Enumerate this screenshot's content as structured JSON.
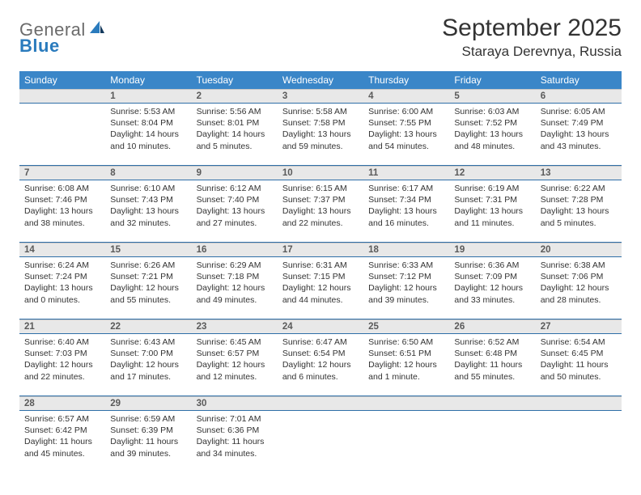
{
  "logo": {
    "text1": "General",
    "text2": "Blue"
  },
  "title": "September 2025",
  "location": "Staraya Derevnya, Russia",
  "colors": {
    "header_bg": "#3a86c8",
    "header_text": "#ffffff",
    "daynum_bg": "#e8e8e8",
    "daynum_text": "#5a5a5a",
    "rule": "#2f6fa8",
    "logo_gray": "#6b6b6b",
    "logo_blue": "#2a7bbd",
    "body_text": "#333333",
    "background": "#ffffff"
  },
  "fonts": {
    "title_size_pt": 22,
    "location_size_pt": 13,
    "dayname_size_pt": 9,
    "daynum_size_pt": 8.5,
    "info_size_pt": 8
  },
  "dayNames": [
    "Sunday",
    "Monday",
    "Tuesday",
    "Wednesday",
    "Thursday",
    "Friday",
    "Saturday"
  ],
  "weeks": [
    [
      null,
      {
        "n": "1",
        "sunrise": "5:53 AM",
        "sunset": "8:04 PM",
        "daylight": "14 hours and 10 minutes."
      },
      {
        "n": "2",
        "sunrise": "5:56 AM",
        "sunset": "8:01 PM",
        "daylight": "14 hours and 5 minutes."
      },
      {
        "n": "3",
        "sunrise": "5:58 AM",
        "sunset": "7:58 PM",
        "daylight": "13 hours and 59 minutes."
      },
      {
        "n": "4",
        "sunrise": "6:00 AM",
        "sunset": "7:55 PM",
        "daylight": "13 hours and 54 minutes."
      },
      {
        "n": "5",
        "sunrise": "6:03 AM",
        "sunset": "7:52 PM",
        "daylight": "13 hours and 48 minutes."
      },
      {
        "n": "6",
        "sunrise": "6:05 AM",
        "sunset": "7:49 PM",
        "daylight": "13 hours and 43 minutes."
      }
    ],
    [
      {
        "n": "7",
        "sunrise": "6:08 AM",
        "sunset": "7:46 PM",
        "daylight": "13 hours and 38 minutes."
      },
      {
        "n": "8",
        "sunrise": "6:10 AM",
        "sunset": "7:43 PM",
        "daylight": "13 hours and 32 minutes."
      },
      {
        "n": "9",
        "sunrise": "6:12 AM",
        "sunset": "7:40 PM",
        "daylight": "13 hours and 27 minutes."
      },
      {
        "n": "10",
        "sunrise": "6:15 AM",
        "sunset": "7:37 PM",
        "daylight": "13 hours and 22 minutes."
      },
      {
        "n": "11",
        "sunrise": "6:17 AM",
        "sunset": "7:34 PM",
        "daylight": "13 hours and 16 minutes."
      },
      {
        "n": "12",
        "sunrise": "6:19 AM",
        "sunset": "7:31 PM",
        "daylight": "13 hours and 11 minutes."
      },
      {
        "n": "13",
        "sunrise": "6:22 AM",
        "sunset": "7:28 PM",
        "daylight": "13 hours and 5 minutes."
      }
    ],
    [
      {
        "n": "14",
        "sunrise": "6:24 AM",
        "sunset": "7:24 PM",
        "daylight": "13 hours and 0 minutes."
      },
      {
        "n": "15",
        "sunrise": "6:26 AM",
        "sunset": "7:21 PM",
        "daylight": "12 hours and 55 minutes."
      },
      {
        "n": "16",
        "sunrise": "6:29 AM",
        "sunset": "7:18 PM",
        "daylight": "12 hours and 49 minutes."
      },
      {
        "n": "17",
        "sunrise": "6:31 AM",
        "sunset": "7:15 PM",
        "daylight": "12 hours and 44 minutes."
      },
      {
        "n": "18",
        "sunrise": "6:33 AM",
        "sunset": "7:12 PM",
        "daylight": "12 hours and 39 minutes."
      },
      {
        "n": "19",
        "sunrise": "6:36 AM",
        "sunset": "7:09 PM",
        "daylight": "12 hours and 33 minutes."
      },
      {
        "n": "20",
        "sunrise": "6:38 AM",
        "sunset": "7:06 PM",
        "daylight": "12 hours and 28 minutes."
      }
    ],
    [
      {
        "n": "21",
        "sunrise": "6:40 AM",
        "sunset": "7:03 PM",
        "daylight": "12 hours and 22 minutes."
      },
      {
        "n": "22",
        "sunrise": "6:43 AM",
        "sunset": "7:00 PM",
        "daylight": "12 hours and 17 minutes."
      },
      {
        "n": "23",
        "sunrise": "6:45 AM",
        "sunset": "6:57 PM",
        "daylight": "12 hours and 12 minutes."
      },
      {
        "n": "24",
        "sunrise": "6:47 AM",
        "sunset": "6:54 PM",
        "daylight": "12 hours and 6 minutes."
      },
      {
        "n": "25",
        "sunrise": "6:50 AM",
        "sunset": "6:51 PM",
        "daylight": "12 hours and 1 minute."
      },
      {
        "n": "26",
        "sunrise": "6:52 AM",
        "sunset": "6:48 PM",
        "daylight": "11 hours and 55 minutes."
      },
      {
        "n": "27",
        "sunrise": "6:54 AM",
        "sunset": "6:45 PM",
        "daylight": "11 hours and 50 minutes."
      }
    ],
    [
      {
        "n": "28",
        "sunrise": "6:57 AM",
        "sunset": "6:42 PM",
        "daylight": "11 hours and 45 minutes."
      },
      {
        "n": "29",
        "sunrise": "6:59 AM",
        "sunset": "6:39 PM",
        "daylight": "11 hours and 39 minutes."
      },
      {
        "n": "30",
        "sunrise": "7:01 AM",
        "sunset": "6:36 PM",
        "daylight": "11 hours and 34 minutes."
      },
      null,
      null,
      null,
      null
    ]
  ],
  "labels": {
    "sunrise": "Sunrise:",
    "sunset": "Sunset:",
    "daylight": "Daylight:"
  }
}
